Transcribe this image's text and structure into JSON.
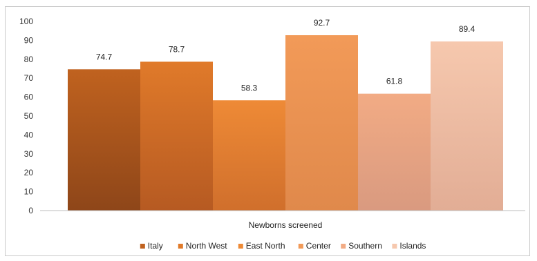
{
  "chart_data": {
    "type": "bar",
    "title": "",
    "xlabel": "Newborns screened",
    "ylabel": "",
    "ylim": [
      0,
      100
    ],
    "y_ticks": [
      0,
      10,
      20,
      30,
      40,
      50,
      60,
      70,
      80,
      90,
      100
    ],
    "categories": [
      "Newborns screened"
    ],
    "series": [
      {
        "name": "Italy",
        "values": [
          74.7
        ],
        "color_top": "#c0621f",
        "color_bottom": "#8e4619"
      },
      {
        "name": "North West",
        "values": [
          78.7
        ],
        "color_top": "#e07a2a",
        "color_bottom": "#b65a22"
      },
      {
        "name": "East North",
        "values": [
          58.3
        ],
        "color_top": "#ee8a36",
        "color_bottom": "#d06f2c"
      },
      {
        "name": "Center",
        "values": [
          92.7
        ],
        "color_top": "#f29a58",
        "color_bottom": "#e0894b"
      },
      {
        "name": "Southern",
        "values": [
          61.8
        ],
        "color_top": "#f2ab84",
        "color_bottom": "#d99a80"
      },
      {
        "name": "Islands",
        "values": [
          89.4
        ],
        "color_top": "#f6c8ae",
        "color_bottom": "#e2ad95"
      }
    ],
    "grid": false,
    "legend_position": "bottom"
  }
}
